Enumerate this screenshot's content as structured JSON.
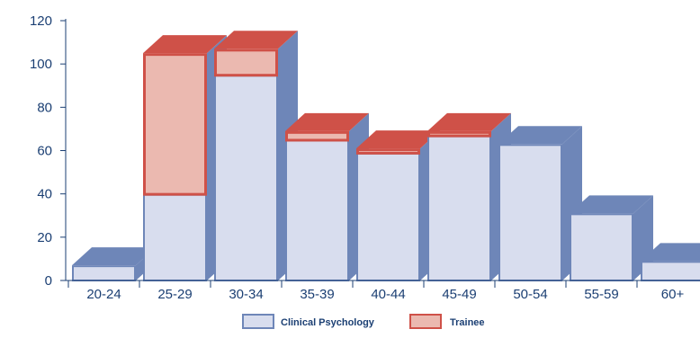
{
  "chart_data": {
    "type": "bar",
    "stacked": true,
    "style": "3d",
    "categories": [
      "20-24",
      "25-29",
      "30-34",
      "35-39",
      "40-44",
      "45-49",
      "50-54",
      "55-59",
      "60+"
    ],
    "series": [
      {
        "name": "Clinical Psychology",
        "values": [
          7,
          40,
          95,
          65,
          59,
          67,
          63,
          31,
          9
        ]
      },
      {
        "name": "Trainee",
        "values": [
          0,
          65,
          12,
          4,
          2,
          2,
          0,
          0,
          0
        ]
      }
    ],
    "y_ticks": [
      "0",
      "20",
      "40",
      "60",
      "80",
      "100",
      "120"
    ],
    "ylim": [
      0,
      120
    ],
    "legend_position": "bottom-center",
    "colors": {
      "clinical_fill": "#d8ddee",
      "clinical_side": "#6e86b8",
      "clinical_top": "#6e86b8",
      "trainee_fill": "#ebb9b0",
      "trainee_border": "#cf5148",
      "trainee_top": "#cf5148",
      "axis": "#1b3f73",
      "text": "#1b3f73"
    }
  }
}
